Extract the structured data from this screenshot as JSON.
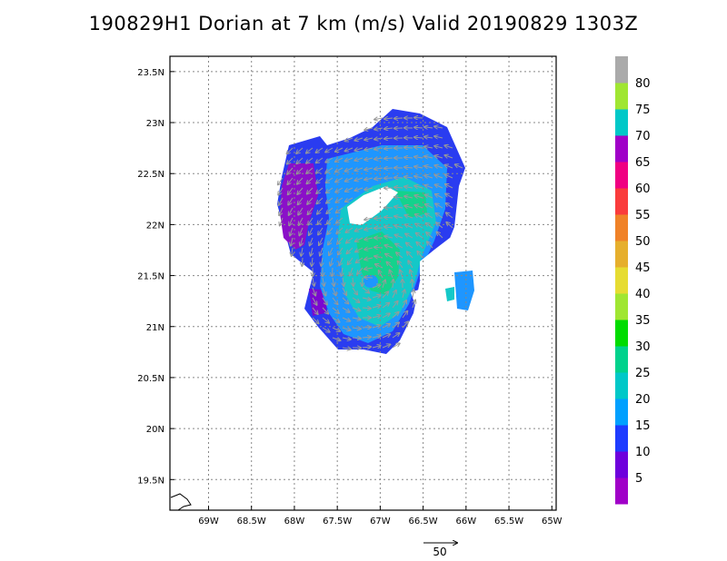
{
  "title": "190829H1 Dorian at 7 km (m/s) Valid 20190829 1303Z",
  "map": {
    "lon_range": [
      -69.45,
      -64.95
    ],
    "lat_range": [
      19.2,
      23.65
    ],
    "x_ticks": [
      {
        "value": -69.0,
        "label": "69W"
      },
      {
        "value": -68.5,
        "label": "68.5W"
      },
      {
        "value": -68.0,
        "label": "68W"
      },
      {
        "value": -67.5,
        "label": "67.5W"
      },
      {
        "value": -67.0,
        "label": "67W"
      },
      {
        "value": -66.5,
        "label": "66.5W"
      },
      {
        "value": -66.0,
        "label": "66W"
      },
      {
        "value": -65.5,
        "label": "65.5W"
      },
      {
        "value": -65.0,
        "label": "65W"
      }
    ],
    "y_ticks": [
      {
        "value": 19.5,
        "label": "19.5N"
      },
      {
        "value": 20.0,
        "label": "20N"
      },
      {
        "value": 20.5,
        "label": "20.5N"
      },
      {
        "value": 21.0,
        "label": "21N"
      },
      {
        "value": 21.5,
        "label": "21.5N"
      },
      {
        "value": 22.0,
        "label": "22N"
      },
      {
        "value": 22.5,
        "label": "22.5N"
      },
      {
        "value": 23.0,
        "label": "23N"
      },
      {
        "value": 23.5,
        "label": "23.5N"
      }
    ],
    "grid": true,
    "storm_center": {
      "lon": -67.1,
      "lat": 21.45
    }
  },
  "colorbar": {
    "segments": [
      {
        "color": "#a000c8"
      },
      {
        "color": "#6e00dc"
      },
      {
        "color": "#1e3cff"
      },
      {
        "color": "#00a0ff"
      },
      {
        "color": "#00c8c8"
      },
      {
        "color": "#00d28c"
      },
      {
        "color": "#00dc00"
      },
      {
        "color": "#a0e632"
      },
      {
        "color": "#e6dc32"
      },
      {
        "color": "#e6af2d"
      },
      {
        "color": "#f08228"
      },
      {
        "color": "#fa3c3c"
      },
      {
        "color": "#f00082"
      },
      {
        "color": "#a000c8"
      },
      {
        "color": "#00c8c8"
      },
      {
        "color": "#a0e632"
      },
      {
        "color": "#aaaaaa"
      }
    ],
    "labels": [
      "5",
      "10",
      "15",
      "20",
      "25",
      "30",
      "35",
      "40",
      "45",
      "50",
      "55",
      "60",
      "65",
      "70",
      "75",
      "80"
    ]
  },
  "reference_vector": {
    "label": "50",
    "speed": 50
  }
}
